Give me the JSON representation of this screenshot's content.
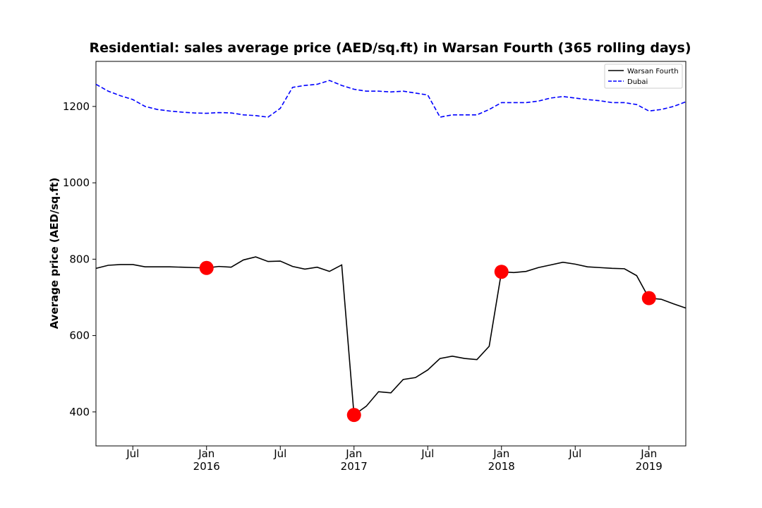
{
  "chart_data": {
    "type": "line",
    "title": "Residential: sales average price (AED/sq.ft) in Warsan Fourth (365 rolling days)",
    "y_label": "Average price (AED/sq.ft)",
    "x": [
      "2015-04",
      "2015-05",
      "2015-06",
      "2015-07",
      "2015-08",
      "2015-09",
      "2015-10",
      "2015-11",
      "2015-12",
      "2016-01",
      "2016-02",
      "2016-03",
      "2016-04",
      "2016-05",
      "2016-06",
      "2016-07",
      "2016-08",
      "2016-09",
      "2016-10",
      "2016-11",
      "2016-12",
      "2017-01",
      "2017-02",
      "2017-03",
      "2017-04",
      "2017-05",
      "2017-06",
      "2017-07",
      "2017-08",
      "2017-09",
      "2017-10",
      "2017-11",
      "2017-12",
      "2018-01",
      "2018-02",
      "2018-03",
      "2018-04",
      "2018-05",
      "2018-06",
      "2018-07",
      "2018-08",
      "2018-09",
      "2018-10",
      "2018-11",
      "2018-12",
      "2019-01",
      "2019-02",
      "2019-03",
      "2019-04"
    ],
    "series": [
      {
        "name": "Warsan Fourth",
        "color": "#000000",
        "dash": "solid",
        "values": [
          776,
          784,
          786,
          786,
          780,
          780,
          780,
          779,
          778,
          777,
          781,
          779,
          798,
          806,
          794,
          795,
          781,
          774,
          779,
          768,
          785,
          392,
          415,
          453,
          450,
          485,
          490,
          510,
          540,
          546,
          540,
          537,
          572,
          767,
          765,
          768,
          778,
          785,
          792,
          787,
          780,
          778,
          776,
          775,
          757,
          698,
          695,
          683,
          672
        ]
      },
      {
        "name": "Dubai",
        "color": "#0000ff",
        "dash": "dashed",
        "values": [
          1258,
          1240,
          1228,
          1218,
          1200,
          1192,
          1188,
          1185,
          1183,
          1182,
          1184,
          1183,
          1178,
          1176,
          1172,
          1195,
          1250,
          1255,
          1258,
          1268,
          1255,
          1245,
          1240,
          1240,
          1238,
          1240,
          1235,
          1230,
          1172,
          1178,
          1178,
          1178,
          1192,
          1210,
          1210,
          1210,
          1214,
          1222,
          1226,
          1222,
          1218,
          1215,
          1210,
          1210,
          1205,
          1188,
          1192,
          1200,
          1212
        ]
      }
    ],
    "markers": {
      "color": "#ff0000",
      "x": [
        "2016-01",
        "2017-01",
        "2018-01",
        "2019-01"
      ]
    },
    "xlim": [
      "2015-04",
      "2019-04"
    ],
    "xticks": [
      {
        "value": "2015-07",
        "label": "Jul"
      },
      {
        "value": "2016-01",
        "label": "Jan\n2016"
      },
      {
        "value": "2016-07",
        "label": "Jul"
      },
      {
        "value": "2017-01",
        "label": "Jan\n2017"
      },
      {
        "value": "2017-07",
        "label": "Jul"
      },
      {
        "value": "2018-01",
        "label": "Jan\n2018"
      },
      {
        "value": "2018-07",
        "label": "Jul"
      },
      {
        "value": "2019-01",
        "label": "Jan\n2019"
      }
    ],
    "ylim": [
      311,
      1318
    ],
    "yticks": [
      400,
      600,
      800,
      1000,
      1200
    ],
    "legend": "upper right",
    "grid": false
  }
}
